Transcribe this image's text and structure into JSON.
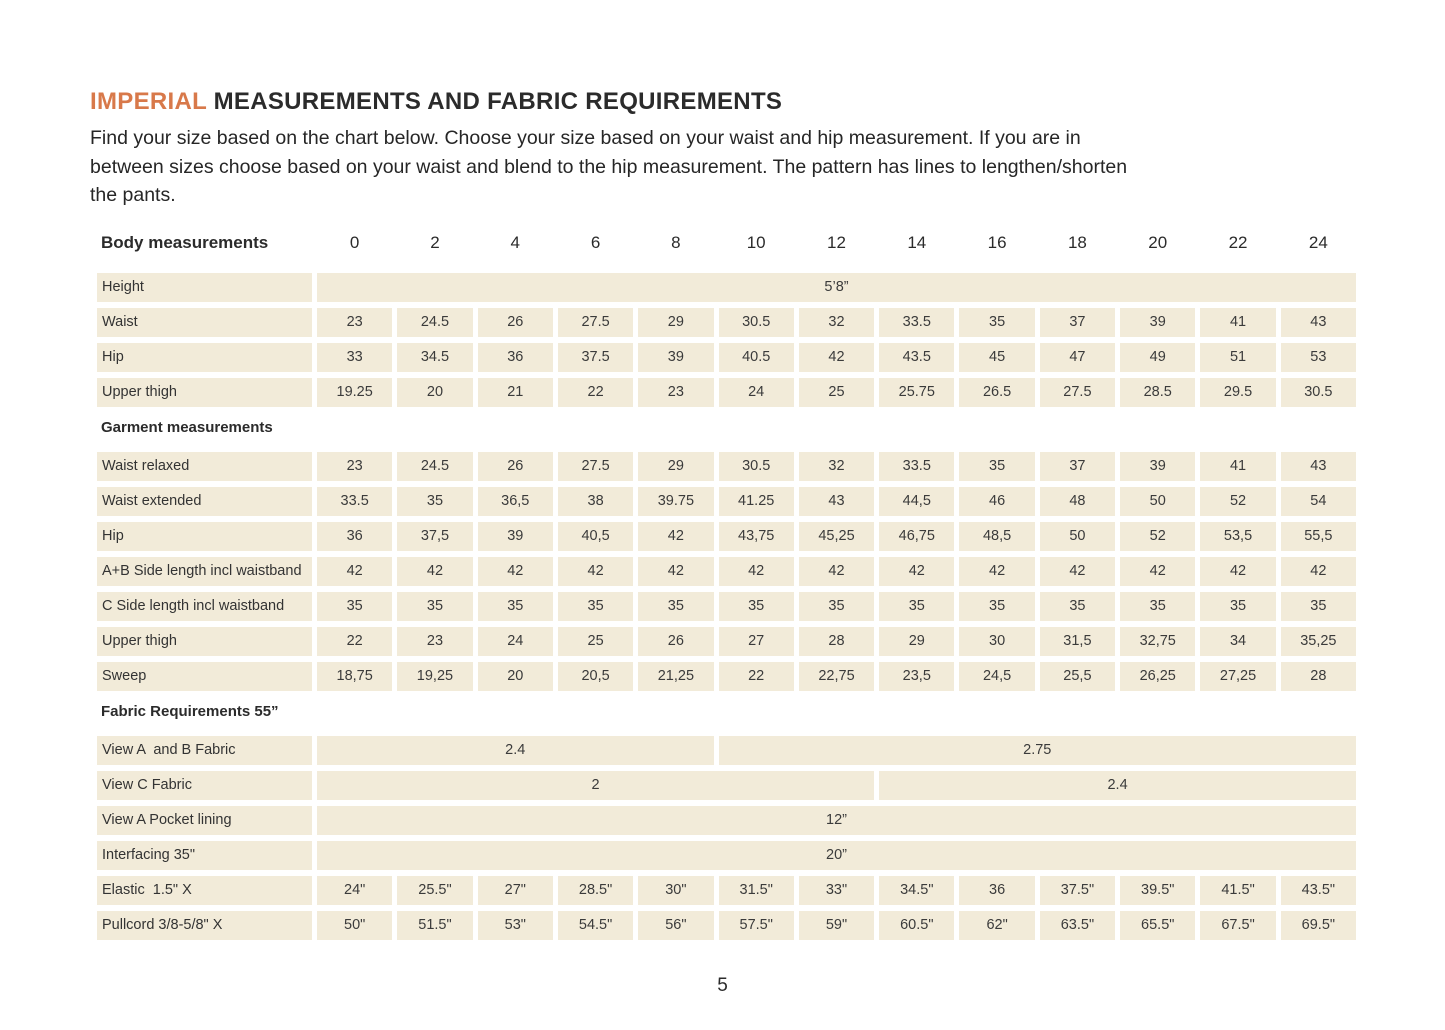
{
  "colors": {
    "accent_orange": "#d8794a",
    "cell_beige": "#f2ebd9",
    "text_dark": "#2e2e2e"
  },
  "header": {
    "title_accent": "IMPERIAL",
    "title_rest": " MEASUREMENTS AND FABRIC REQUIREMENTS",
    "intro_lines": [
      "Find your size based on the chart below. Choose your size based on your waist and hip measurement. If you are in",
      "between sizes choose based on your waist and blend to the hip measurement. The pattern has lines to lengthen/shorten",
      "the pants."
    ]
  },
  "table": {
    "header": {
      "label": "Body measurements",
      "sizes": [
        "0",
        "2",
        "4",
        "6",
        "8",
        "10",
        "12",
        "14",
        "16",
        "18",
        "20",
        "22",
        "24"
      ]
    },
    "rows": [
      {
        "type": "span",
        "label": "Height",
        "spans": [
          {
            "text": "5’8”",
            "cols": 13
          }
        ]
      },
      {
        "type": "data",
        "label": "Waist",
        "values": [
          "23",
          "24.5",
          "26",
          "27.5",
          "29",
          "30.5",
          "32",
          "33.5",
          "35",
          "37",
          "39",
          "41",
          "43"
        ]
      },
      {
        "type": "data",
        "label": "Hip",
        "values": [
          "33",
          "34.5",
          "36",
          "37.5",
          "39",
          "40.5",
          "42",
          "43.5",
          "45",
          "47",
          "49",
          "51",
          "53"
        ]
      },
      {
        "type": "data",
        "label": "Upper thigh",
        "values": [
          "19.25",
          "20",
          "21",
          "22",
          "23",
          "24",
          "25",
          "25.75",
          "26.5",
          "27.5",
          "28.5",
          "29.5",
          "30.5"
        ]
      },
      {
        "type": "section",
        "label": "Garment measurements"
      },
      {
        "type": "data",
        "label": "Waist relaxed",
        "values": [
          "23",
          "24.5",
          "26",
          "27.5",
          "29",
          "30.5",
          "32",
          "33.5",
          "35",
          "37",
          "39",
          "41",
          "43"
        ]
      },
      {
        "type": "data",
        "label": "Waist extended",
        "values": [
          "33.5",
          "35",
          "36,5",
          "38",
          "39.75",
          "41.25",
          "43",
          "44,5",
          "46",
          "48",
          "50",
          "52",
          "54"
        ]
      },
      {
        "type": "data",
        "label": "Hip",
        "values": [
          "36",
          "37,5",
          "39",
          "40,5",
          "42",
          "43,75",
          "45,25",
          "46,75",
          "48,5",
          "50",
          "52",
          "53,5",
          "55,5"
        ]
      },
      {
        "type": "data",
        "label": "A+B Side length incl waistband",
        "values": [
          "42",
          "42",
          "42",
          "42",
          "42",
          "42",
          "42",
          "42",
          "42",
          "42",
          "42",
          "42",
          "42"
        ]
      },
      {
        "type": "data",
        "label": "C Side length incl waistband",
        "values": [
          "35",
          "35",
          "35",
          "35",
          "35",
          "35",
          "35",
          "35",
          "35",
          "35",
          "35",
          "35",
          "35"
        ]
      },
      {
        "type": "data",
        "label": "Upper thigh",
        "values": [
          "22",
          "23",
          "24",
          "25",
          "26",
          "27",
          "28",
          "29",
          "30",
          "31,5",
          "32,75",
          "34",
          "35,25"
        ]
      },
      {
        "type": "data",
        "label": "Sweep",
        "values": [
          "18,75",
          "19,25",
          "20",
          "20,5",
          "21,25",
          "22",
          "22,75",
          "23,5",
          "24,5",
          "25,5",
          "26,25",
          "27,25",
          "28"
        ]
      },
      {
        "type": "section",
        "label": "Fabric Requirements 55”"
      },
      {
        "type": "span",
        "label": "View A  and B Fabric",
        "spans": [
          {
            "text": "2.4",
            "cols": 5
          },
          {
            "text": "2.75",
            "cols": 8
          }
        ]
      },
      {
        "type": "span",
        "label": "View C Fabric",
        "spans": [
          {
            "text": "2",
            "cols": 7
          },
          {
            "text": "2.4",
            "cols": 6
          }
        ]
      },
      {
        "type": "span",
        "label": "View A Pocket lining",
        "spans": [
          {
            "text": "12”",
            "cols": 13
          }
        ]
      },
      {
        "type": "span",
        "label": "Interfacing 35\"",
        "spans": [
          {
            "text": "20”",
            "cols": 13
          }
        ]
      },
      {
        "type": "data",
        "label": "Elastic  1.5\" X",
        "values": [
          "24\"",
          "25.5\"",
          "27\"",
          "28.5\"",
          "30\"",
          "31.5\"",
          "33\"",
          "34.5\"",
          "36",
          "37.5\"",
          "39.5\"",
          "41.5\"",
          "43.5\""
        ]
      },
      {
        "type": "data",
        "label": "Pullcord 3/8-5/8\" X",
        "values": [
          "50\"",
          "51.5\"",
          "53\"",
          "54.5\"",
          "56\"",
          "57.5\"",
          "59\"",
          "60.5\"",
          "62\"",
          "63.5\"",
          "65.5\"",
          "67.5\"",
          "69.5\""
        ]
      }
    ]
  },
  "footer": {
    "page_number": "5"
  }
}
